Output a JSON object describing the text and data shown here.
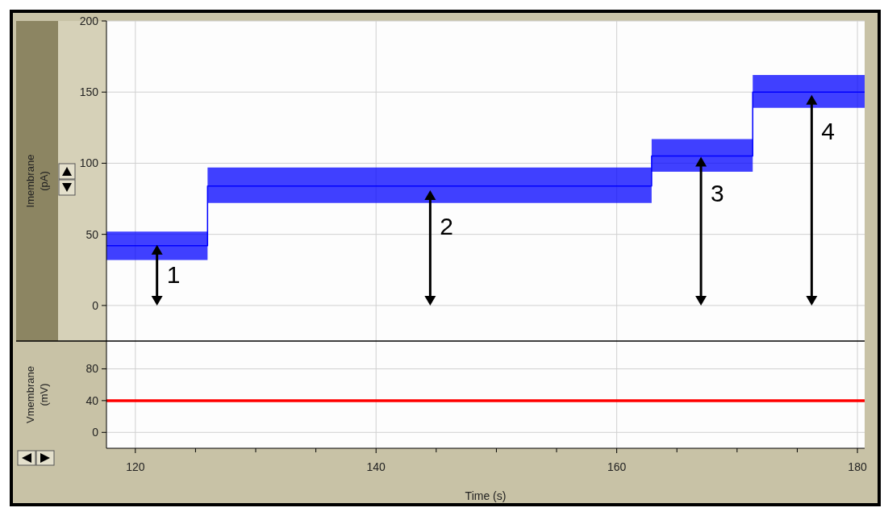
{
  "chart_data": [
    {
      "type": "line",
      "ylabel": "Imembrane (pA)",
      "xlim": [
        117.6,
        180.6
      ],
      "xticks": [
        120,
        140,
        160,
        180
      ],
      "ylim": [
        -25,
        200
      ],
      "yticks": [
        0,
        50,
        100,
        150,
        200
      ],
      "grid": true,
      "tick_labels": "y",
      "series": [
        {
          "color": "#0000ff",
          "x": [
            117.6,
            126,
            126,
            162.9,
            162.9,
            171.3,
            171.3,
            180.6
          ],
          "values": [
            42,
            42,
            84,
            84,
            105,
            105,
            150,
            150
          ],
          "lower": [
            32,
            32,
            72,
            72,
            94,
            94,
            139,
            139
          ],
          "upper": [
            52,
            52,
            97,
            97,
            117,
            117,
            162,
            162
          ]
        }
      ],
      "annotations": [
        {
          "text": "1",
          "x": 121.8,
          "y": 42.6
        },
        {
          "text": "2",
          "x": 144.5,
          "y": 81
        },
        {
          "text": "3",
          "x": 167.0,
          "y": 104.5
        },
        {
          "text": "4",
          "x": 176.2,
          "y": 148
        }
      ]
    },
    {
      "type": "line",
      "ylabel": "Vmembrane (mV)",
      "xlabel": "Time (s)",
      "xlim": [
        117.6,
        180.6
      ],
      "xticks": [
        120,
        140,
        160,
        180
      ],
      "ylim": [
        -20,
        115
      ],
      "yticks": [
        0,
        40,
        80
      ],
      "grid": true,
      "series": [
        {
          "color": "#ff0000",
          "x": [
            117.6,
            180.6
          ],
          "values": [
            40,
            40
          ]
        }
      ]
    }
  ]
}
